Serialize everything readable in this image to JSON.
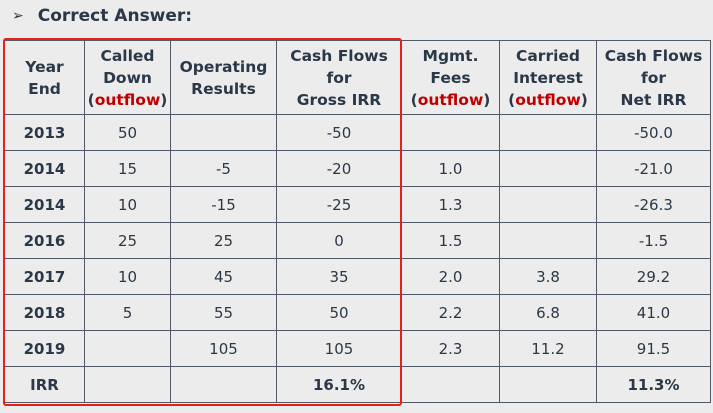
{
  "title": "Correct Answer:",
  "outflow": "outflow",
  "headers": [
    {
      "lines": [
        "Year",
        "End"
      ]
    },
    {
      "lines": [
        "Called",
        "Down"
      ],
      "outflow": true
    },
    {
      "lines": [
        "Operating",
        "Results"
      ]
    },
    {
      "lines": [
        "Cash Flows",
        "for",
        "Gross IRR"
      ]
    },
    {
      "lines": [
        "Mgmt.",
        "Fees"
      ],
      "outflow": true
    },
    {
      "lines": [
        "Carried",
        "Interest"
      ],
      "outflow": true
    },
    {
      "lines": [
        "Cash Flows",
        "for",
        "Net IRR"
      ]
    }
  ],
  "rows": [
    [
      "2013",
      "50",
      "",
      "-50",
      "",
      "",
      "-50.0"
    ],
    [
      "2014",
      "15",
      "-5",
      "-20",
      "1.0",
      "",
      "-21.0"
    ],
    [
      "2014",
      "10",
      "-15",
      "-25",
      "1.3",
      "",
      "-26.3"
    ],
    [
      "2016",
      "25",
      "25",
      "0",
      "1.5",
      "",
      "-1.5"
    ],
    [
      "2017",
      "10",
      "45",
      "35",
      "2.0",
      "3.8",
      "29.2"
    ],
    [
      "2018",
      "5",
      "55",
      "50",
      "2.2",
      "6.8",
      "41.0"
    ],
    [
      "2019",
      "",
      "105",
      "105",
      "2.3",
      "11.2",
      "91.5"
    ],
    [
      "IRR",
      "",
      "",
      "16.1%",
      "",
      "",
      "11.3%"
    ]
  ],
  "highlight_color": "#e8201a"
}
